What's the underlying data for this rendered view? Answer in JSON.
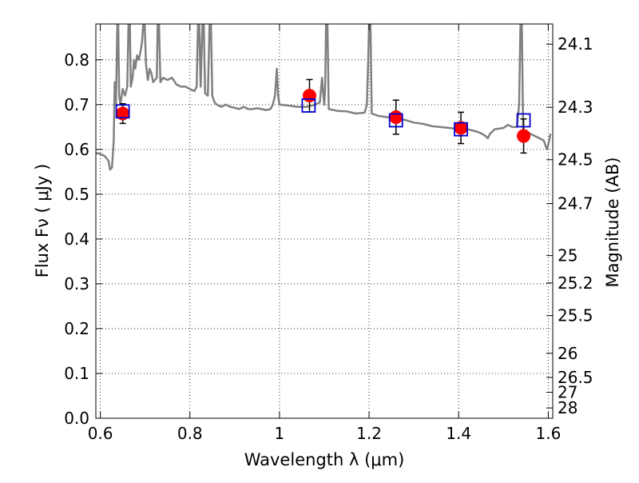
{
  "chart_data": {
    "type": "scatter",
    "title": "",
    "xlabel": "Wavelength  λ (μm)",
    "ylabel": "Flux  Fν  ( μJy )",
    "ylabel2": "Magnitude (AB)",
    "xlim": [
      0.59,
      1.61
    ],
    "ylim": [
      0.0,
      0.88
    ],
    "grid": true,
    "x_ticks": [
      0.6,
      0.8,
      1.0,
      1.2,
      1.4,
      1.6
    ],
    "x_tick_labels": [
      "0.6",
      "0.8",
      "1",
      "1.2",
      "1.4",
      "1.6"
    ],
    "y_ticks": [
      0.0,
      0.1,
      0.2,
      0.3,
      0.4,
      0.5,
      0.6,
      0.7,
      0.8
    ],
    "y_tick_labels": [
      "0.0",
      "0.1",
      "0.2",
      "0.3",
      "0.4",
      "0.5",
      "0.6",
      "0.7",
      "0.8"
    ],
    "mag_ticks": [
      {
        "flux": 0.835,
        "label": "24.1"
      },
      {
        "flux": 0.694,
        "label": "24.3"
      },
      {
        "flux": 0.577,
        "label": "24.5"
      },
      {
        "flux": 0.479,
        "label": "24.7"
      },
      {
        "flux": 0.363,
        "label": "25"
      },
      {
        "flux": 0.302,
        "label": "25.2"
      },
      {
        "flux": 0.229,
        "label": "25.5"
      },
      {
        "flux": 0.145,
        "label": "26"
      },
      {
        "flux": 0.091,
        "label": "26.5"
      },
      {
        "flux": 0.058,
        "label": "27"
      },
      {
        "flux": 0.023,
        "label": "28"
      }
    ],
    "series": [
      {
        "style": "line",
        "color": "#808080",
        "points": [
          [
            0.59,
            0.592
          ],
          [
            0.6,
            0.59
          ],
          [
            0.61,
            0.585
          ],
          [
            0.618,
            0.575
          ],
          [
            0.622,
            0.555
          ],
          [
            0.626,
            0.56
          ],
          [
            0.63,
            0.62
          ],
          [
            0.632,
            0.75
          ],
          [
            0.635,
            0.7
          ],
          [
            0.638,
            0.88
          ],
          [
            0.64,
            0.88
          ],
          [
            0.642,
            0.72
          ],
          [
            0.645,
            0.7
          ],
          [
            0.65,
            0.735
          ],
          [
            0.655,
            0.72
          ],
          [
            0.66,
            0.74
          ],
          [
            0.663,
            0.88
          ],
          [
            0.666,
            0.88
          ],
          [
            0.668,
            0.74
          ],
          [
            0.672,
            0.76
          ],
          [
            0.675,
            0.8
          ],
          [
            0.678,
            0.78
          ],
          [
            0.682,
            0.81
          ],
          [
            0.686,
            0.8
          ],
          [
            0.69,
            0.82
          ],
          [
            0.693,
            0.84
          ],
          [
            0.696,
            0.88
          ],
          [
            0.699,
            0.88
          ],
          [
            0.702,
            0.79
          ],
          [
            0.706,
            0.755
          ],
          [
            0.71,
            0.78
          ],
          [
            0.714,
            0.77
          ],
          [
            0.718,
            0.75
          ],
          [
            0.722,
            0.755
          ],
          [
            0.726,
            0.76
          ],
          [
            0.728,
            0.88
          ],
          [
            0.731,
            0.88
          ],
          [
            0.734,
            0.75
          ],
          [
            0.74,
            0.76
          ],
          [
            0.75,
            0.755
          ],
          [
            0.76,
            0.76
          ],
          [
            0.77,
            0.745
          ],
          [
            0.78,
            0.74
          ],
          [
            0.79,
            0.74
          ],
          [
            0.8,
            0.735
          ],
          [
            0.81,
            0.73
          ],
          [
            0.815,
            0.74
          ],
          [
            0.818,
            0.88
          ],
          [
            0.821,
            0.88
          ],
          [
            0.824,
            0.74
          ],
          [
            0.828,
            0.88
          ],
          [
            0.831,
            0.88
          ],
          [
            0.834,
            0.725
          ],
          [
            0.84,
            0.72
          ],
          [
            0.844,
            0.88
          ],
          [
            0.847,
            0.88
          ],
          [
            0.85,
            0.72
          ],
          [
            0.855,
            0.705
          ],
          [
            0.86,
            0.7
          ],
          [
            0.87,
            0.695
          ],
          [
            0.88,
            0.7
          ],
          [
            0.89,
            0.695
          ],
          [
            0.9,
            0.693
          ],
          [
            0.91,
            0.69
          ],
          [
            0.92,
            0.695
          ],
          [
            0.93,
            0.69
          ],
          [
            0.94,
            0.69
          ],
          [
            0.95,
            0.692
          ],
          [
            0.96,
            0.69
          ],
          [
            0.97,
            0.688
          ],
          [
            0.98,
            0.69
          ],
          [
            0.985,
            0.7
          ],
          [
            0.99,
            0.72
          ],
          [
            0.994,
            0.78
          ],
          [
            0.997,
            0.72
          ],
          [
            1.0,
            0.7
          ],
          [
            1.02,
            0.698
          ],
          [
            1.04,
            0.695
          ],
          [
            1.06,
            0.695
          ],
          [
            1.08,
            0.7
          ],
          [
            1.09,
            0.705
          ],
          [
            1.095,
            0.76
          ],
          [
            1.098,
            0.72
          ],
          [
            1.1,
            0.7
          ],
          [
            1.102,
            0.74
          ],
          [
            1.104,
            0.88
          ],
          [
            1.107,
            0.88
          ],
          [
            1.11,
            0.69
          ],
          [
            1.13,
            0.686
          ],
          [
            1.15,
            0.685
          ],
          [
            1.17,
            0.68
          ],
          [
            1.19,
            0.682
          ],
          [
            1.195,
            0.7
          ],
          [
            1.198,
            0.8
          ],
          [
            1.2,
            0.88
          ],
          [
            1.203,
            0.88
          ],
          [
            1.206,
            0.68
          ],
          [
            1.22,
            0.675
          ],
          [
            1.24,
            0.672
          ],
          [
            1.26,
            0.67
          ],
          [
            1.28,
            0.666
          ],
          [
            1.3,
            0.66
          ],
          [
            1.32,
            0.657
          ],
          [
            1.34,
            0.652
          ],
          [
            1.36,
            0.65
          ],
          [
            1.38,
            0.648
          ],
          [
            1.4,
            0.645
          ],
          [
            1.42,
            0.645
          ],
          [
            1.44,
            0.64
          ],
          [
            1.45,
            0.636
          ],
          [
            1.46,
            0.63
          ],
          [
            1.465,
            0.625
          ],
          [
            1.47,
            0.635
          ],
          [
            1.48,
            0.645
          ],
          [
            1.5,
            0.648
          ],
          [
            1.51,
            0.655
          ],
          [
            1.52,
            0.65
          ],
          [
            1.53,
            0.65
          ],
          [
            1.535,
            0.7
          ],
          [
            1.538,
            0.88
          ],
          [
            1.541,
            0.88
          ],
          [
            1.544,
            0.64
          ],
          [
            1.55,
            0.64
          ],
          [
            1.56,
            0.635
          ],
          [
            1.57,
            0.63
          ],
          [
            1.58,
            0.625
          ],
          [
            1.59,
            0.62
          ],
          [
            1.597,
            0.6
          ],
          [
            1.6,
            0.61
          ],
          [
            1.605,
            0.635
          ]
        ]
      },
      {
        "style": "markers",
        "marker": "circle",
        "color": "#ff0000",
        "points": [
          [
            0.65,
            0.68
          ],
          [
            1.067,
            0.72
          ],
          [
            1.26,
            0.672
          ],
          [
            1.405,
            0.648
          ],
          [
            1.545,
            0.63
          ]
        ],
        "yerr": [
          0.022,
          0.036,
          0.038,
          0.035,
          0.038
        ]
      },
      {
        "style": "markers",
        "marker": "square",
        "color": "#0000cc",
        "points": [
          [
            0.65,
            0.685
          ],
          [
            1.065,
            0.698
          ],
          [
            1.26,
            0.665
          ],
          [
            1.405,
            0.645
          ],
          [
            1.545,
            0.665
          ]
        ]
      }
    ]
  }
}
